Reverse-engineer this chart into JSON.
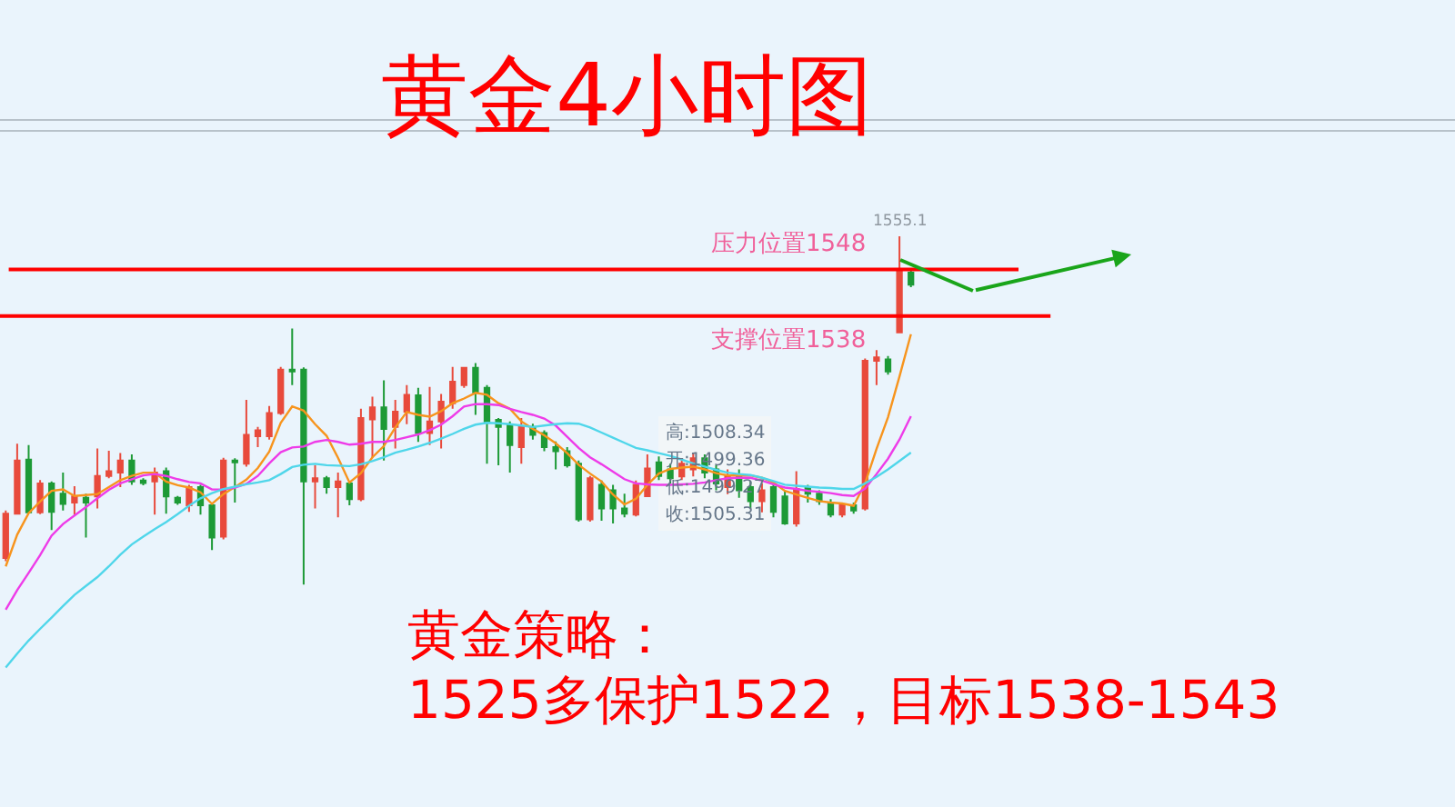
{
  "chart_data": {
    "type": "candlestick",
    "title": "黄金4小时图",
    "annotations": [
      {
        "text": "1555.1",
        "y": 1555.1
      },
      "高:1508.34",
      "开:1499.36",
      "低:1499.27",
      "收:1505.31",
      "黄金策略：",
      "1525多保护1522，目标1538-1543"
    ],
    "categories": [
      null,
      null,
      null,
      null,
      null,
      null,
      null,
      null,
      null,
      null,
      null,
      null,
      null,
      null,
      null,
      null,
      null,
      null,
      null,
      null,
      null,
      null,
      null,
      null,
      null,
      null,
      null,
      null,
      null,
      null,
      null,
      null,
      null,
      null,
      null,
      null,
      null,
      null,
      null,
      null,
      null,
      null,
      null,
      null,
      null,
      null,
      null,
      null,
      null,
      null,
      null,
      null,
      null,
      null,
      null,
      null,
      null,
      null,
      null,
      null,
      null,
      null,
      null,
      null,
      null,
      null,
      null,
      null,
      null,
      null,
      null,
      null,
      null,
      null,
      null,
      null,
      null,
      null,
      null,
      null
    ],
    "ohlc": [
      [
        1486.1,
        1496.3,
        1485.4,
        1495.6
      ],
      [
        1495.6,
        1510.6,
        1495.5,
        1507.0
      ],
      [
        1507.2,
        1510.3,
        1495.7,
        1495.9
      ],
      [
        1495.9,
        1502.8,
        1495.5,
        1502.1
      ],
      [
        1502.1,
        1502.5,
        1492.1,
        1496.0
      ],
      [
        1499.9,
        1504.4,
        1496.3,
        1497.7
      ],
      [
        1498.0,
        1501.5,
        1495.4,
        1499.3
      ],
      [
        1499.0,
        1499.9,
        1490.5,
        1498.0
      ],
      [
        1499.3,
        1509.6,
        1496.7,
        1503.7
      ],
      [
        1503.7,
        1509.1,
        1503.2,
        1504.7
      ],
      [
        1504.4,
        1508.6,
        1501.3,
        1507.0
      ],
      [
        1507.0,
        1508.3,
        1501.8,
        1502.5
      ],
      [
        1502.7,
        1503.2,
        1501.7,
        1502.2
      ],
      [
        1502.5,
        1505.5,
        1495.4,
        1504.4
      ],
      [
        1504.7,
        1505.5,
        1495.6,
        1499.3
      ],
      [
        1499.0,
        1499.4,
        1497.5,
        1498.0
      ],
      [
        1497.4,
        1501.8,
        1496.0,
        1501.3
      ],
      [
        1501.3,
        1501.8,
        1495.4,
        1497.4
      ],
      [
        1497.4,
        1498.0,
        1487.8,
        1490.5
      ],
      [
        1490.7,
        1507.6,
        1490.1,
        1507.0
      ],
      [
        1507.0,
        1507.5,
        1498.0,
        1506.6
      ],
      [
        1506.3,
        1520.0,
        1505.7,
        1512.5
      ],
      [
        1512.2,
        1514.2,
        1509.9,
        1513.5
      ],
      [
        1512.2,
        1518.7,
        1511.5,
        1517.2
      ],
      [
        1517.2,
        1527.1,
        1516.8,
        1526.5
      ],
      [
        1526.5,
        1535.3,
        1523.2,
        1526.1
      ],
      [
        1526.5,
        1527.0,
        1480.4,
        1502.5
      ],
      [
        1502.5,
        1506.0,
        1496.7,
        1503.2
      ],
      [
        1503.2,
        1503.7,
        1499.9,
        1501.3
      ],
      [
        1501.3,
        1504.4,
        1494.8,
        1502.5
      ],
      [
        1502.1,
        1502.5,
        1497.4,
        1498.7
      ],
      [
        1498.7,
        1518.1,
        1498.3,
        1516.1
      ],
      [
        1515.8,
        1520.7,
        1507.6,
        1518.4
      ],
      [
        1518.4,
        1524.2,
        1507.0,
        1513.8
      ],
      [
        1514.2,
        1520.0,
        1509.6,
        1517.5
      ],
      [
        1517.5,
        1523.2,
        1514.8,
        1521.1
      ],
      [
        1521.0,
        1522.6,
        1511.0,
        1512.9
      ],
      [
        1512.9,
        1522.8,
        1510.3,
        1515.4
      ],
      [
        1515.4,
        1521.3,
        1509.6,
        1519.6
      ],
      [
        1519.3,
        1527.1,
        1518.1,
        1523.9
      ],
      [
        1523.2,
        1527.1,
        1522.6,
        1526.9
      ],
      [
        1526.9,
        1527.9,
        1516.8,
        1521.6
      ],
      [
        1522.6,
        1523.2,
        1506.3,
        1515.4
      ],
      [
        1515.7,
        1516.1,
        1506.0,
        1514.2
      ],
      [
        1514.6,
        1515.4,
        1504.4,
        1510.3
      ],
      [
        1509.9,
        1516.1,
        1506.3,
        1514.2
      ],
      [
        1514.2,
        1514.9,
        1511.5,
        1512.5
      ],
      [
        1512.9,
        1513.5,
        1509.0,
        1509.9
      ],
      [
        1509.9,
        1511.1,
        1505.1,
        1509.0
      ],
      [
        1509.0,
        1509.9,
        1505.5,
        1506.0
      ],
      [
        1506.3,
        1507.0,
        1493.9,
        1494.4
      ],
      [
        1494.4,
        1503.7,
        1493.9,
        1503.2
      ],
      [
        1501.8,
        1502.7,
        1494.1,
        1496.7
      ],
      [
        1500.6,
        1501.8,
        1493.5,
        1496.7
      ],
      [
        1496.7,
        1499.9,
        1494.8,
        1495.6
      ],
      [
        1495.4,
        1502.7,
        1495.0,
        1501.8
      ],
      [
        1499.36,
        1508.34,
        1499.27,
        1505.31
      ],
      [
        1506.6,
        1507.9,
        1502.8,
        1503.7
      ],
      [
        1505.1,
        1506.3,
        1502.1,
        1503.2
      ],
      [
        1503.6,
        1507.2,
        1502.8,
        1506.3
      ],
      [
        1505.1,
        1508.7,
        1503.6,
        1507.5
      ],
      [
        1507.5,
        1508.3,
        1503.2,
        1504.4
      ],
      [
        1505.1,
        1506.0,
        1500.6,
        1502.1
      ],
      [
        1501.3,
        1505.1,
        1499.8,
        1503.6
      ],
      [
        1503.6,
        1505.1,
        1499.0,
        1500.6
      ],
      [
        1501.3,
        1502.5,
        1496.7,
        1498.3
      ],
      [
        1498.3,
        1502.1,
        1495.9,
        1500.6
      ],
      [
        1501.3,
        1502.5,
        1494.8,
        1496.0
      ],
      [
        1499.3,
        1500.6,
        1493.2,
        1493.5
      ],
      [
        1493.5,
        1504.7,
        1492.8,
        1500.9
      ],
      [
        1501.3,
        1501.8,
        1498.0,
        1499.9
      ],
      [
        1499.9,
        1500.6,
        1497.5,
        1498.3
      ],
      [
        1498.0,
        1498.7,
        1494.8,
        1495.4
      ],
      [
        1495.4,
        1498.0,
        1494.8,
        1497.4
      ],
      [
        1497.4,
        1498.0,
        1495.6,
        1496.3
      ],
      [
        1496.7,
        1528.9,
        1496.3,
        1528.4
      ],
      [
        1528.4,
        1530.7,
        1523.2,
        1529.1
      ],
      [
        1528.7,
        1529.4,
        1525.4,
        1526.1
      ],
      [
        1534.5,
        1555.1,
        1534.5,
        1547.6
      ],
      [
        1547.3,
        1548.1,
        1544.2,
        1544.7
      ]
    ],
    "colors": [
      "#e84a3c",
      "#e84a3c",
      "#1d9a36",
      "#e84a3c",
      "#1d9a36",
      "#1d9a36",
      "#e84a3c",
      "#1d9a36",
      "#e84a3c",
      "#e84a3c",
      "#e84a3c",
      "#1d9a36",
      "#1d9a36",
      "#e84a3c",
      "#1d9a36",
      "#1d9a36",
      "#e84a3c",
      "#1d9a36",
      "#1d9a36",
      "#e84a3c",
      "#1d9a36",
      "#e84a3c",
      "#e84a3c",
      "#e84a3c",
      "#e84a3c",
      "#1d9a36",
      "#1d9a36",
      "#e84a3c",
      "#1d9a36",
      "#e84a3c",
      "#1d9a36",
      "#e84a3c",
      "#e84a3c",
      "#1d9a36",
      "#e84a3c",
      "#e84a3c",
      "#1d9a36",
      "#e84a3c",
      "#e84a3c",
      "#e84a3c",
      "#e84a3c",
      "#1d9a36",
      "#1d9a36",
      "#1d9a36",
      "#1d9a36",
      "#e84a3c",
      "#1d9a36",
      "#1d9a36",
      "#1d9a36",
      "#1d9a36",
      "#1d9a36",
      "#e84a3c",
      "#1d9a36",
      "#1d9a36",
      "#1d9a36",
      "#e84a3c",
      "#e84a3c",
      "#1d9a36",
      "#1d9a36",
      "#e84a3c",
      "#e84a3c",
      "#1d9a36",
      "#1d9a36",
      "#e84a3c",
      "#1d9a36",
      "#1d9a36",
      "#e84a3c",
      "#1d9a36",
      "#1d9a36",
      "#e84a3c",
      "#1d9a36",
      "#1d9a36",
      "#1d9a36",
      "#e84a3c",
      "#1d9a36",
      "#e84a3c",
      "#e84a3c",
      "#1d9a36",
      "#e84a3c",
      "#1d9a36"
    ],
    "series": [
      {
        "type": "line",
        "color": "#f7941d",
        "values": [
          1484.3,
          1491.1,
          1495.7,
          1498.2,
          1500.5,
          1500.8,
          1499.4,
          1499.6,
          1499.8,
          1501.3,
          1502.8,
          1503.7,
          1504.4,
          1504.4,
          1502.5,
          1501.7,
          1501.2,
          1500.2,
          1497.7,
          1499.8,
          1501.3,
          1502.9,
          1505.4,
          1508.9,
          1515.1,
          1518.6,
          1517.7,
          1514.8,
          1512.3,
          1507.6,
          1502.3,
          1504.3,
          1507.7,
          1510.1,
          1514.1,
          1517.4,
          1516.8,
          1516.4,
          1517.6,
          1519.3,
          1520.3,
          1521.5,
          1521.1,
          1519.3,
          1518.1,
          1515.4,
          1513.8,
          1512.4,
          1510.7,
          1508.6,
          1506.1,
          1504.2,
          1502.5,
          1499.7,
          1497.6,
          1498.8,
          1501.8,
          1504.2,
          1505.2,
          1505.5,
          1505.7,
          1505.1,
          1504.3,
          1503.8,
          1503.8,
          1503.8,
          1503.3,
          1502.3,
          1500.5,
          1499.7,
          1499.0,
          1498.3,
          1498.0,
          1497.8,
          1497.3,
          1502.1,
          1509.5,
          1516.3,
          1525.0,
          1534.1
        ]
      },
      {
        "type": "line",
        "color": "#ee3be8",
        "values": [
          1475.0,
          1479.2,
          1482.9,
          1486.7,
          1490.9,
          1493.4,
          1495.2,
          1497.0,
          1498.9,
          1500.7,
          1502.1,
          1503.0,
          1503.8,
          1504.1,
          1503.7,
          1503.0,
          1502.4,
          1502.1,
          1500.8,
          1500.8,
          1501.2,
          1502.0,
          1503.7,
          1506.4,
          1508.8,
          1509.8,
          1510.0,
          1511.0,
          1511.4,
          1511.0,
          1510.4,
          1510.6,
          1511.0,
          1511.0,
          1511.4,
          1512.0,
          1512.6,
          1513.5,
          1514.7,
          1516.5,
          1518.6,
          1519.1,
          1519.1,
          1518.9,
          1518.1,
          1517.4,
          1516.8,
          1516.0,
          1514.5,
          1512.1,
          1509.7,
          1507.7,
          1506.2,
          1504.6,
          1503.0,
          1502.1,
          1501.9,
          1501.8,
          1501.8,
          1501.9,
          1502.0,
          1502.3,
          1502.8,
          1503.2,
          1503.3,
          1503.3,
          1502.7,
          1501.9,
          1501.2,
          1500.9,
          1500.5,
          1500.3,
          1500.0,
          1499.6,
          1499.4,
          1501.0,
          1504.1,
          1507.4,
          1511.5,
          1516.5
        ]
      },
      {
        "type": "line",
        "color": "#4fd6ea",
        "values": [
          1462.6,
          1465.6,
          1468.4,
          1470.9,
          1473.3,
          1475.8,
          1478.2,
          1480.1,
          1482.0,
          1484.3,
          1486.8,
          1489.0,
          1490.7,
          1492.3,
          1493.8,
          1495.5,
          1497.3,
          1498.9,
          1500.0,
          1500.9,
          1501.4,
          1501.9,
          1502.3,
          1502.8,
          1504.1,
          1505.6,
          1506.1,
          1506.3,
          1506.0,
          1505.9,
          1505.8,
          1506.2,
          1506.9,
          1507.7,
          1508.7,
          1509.3,
          1510.0,
          1510.8,
          1511.7,
          1512.7,
          1513.8,
          1514.7,
          1515.1,
          1515.0,
          1514.8,
          1514.5,
          1514.2,
          1514.5,
          1514.8,
          1515.0,
          1514.9,
          1514.1,
          1513.0,
          1511.9,
          1510.8,
          1509.7,
          1509.2,
          1508.6,
          1508.0,
          1507.2,
          1506.4,
          1505.7,
          1505.0,
          1504.4,
          1504.1,
          1503.9,
          1503.3,
          1502.6,
          1501.8,
          1501.6,
          1501.4,
          1501.2,
          1501.1,
          1500.9,
          1500.9,
          1502.1,
          1503.5,
          1505.1,
          1506.9,
          1508.7
        ]
      }
    ],
    "ylim": [
      1432.7,
      1577.7
    ],
    "ref_lines": [
      {
        "axis": "y",
        "value": 1548,
        "label": "压力位置1548",
        "color": "#ff0000"
      },
      {
        "axis": "y",
        "value": 1538,
        "label": "支撑位置1538",
        "color": "#ff0000"
      }
    ],
    "tick_labels": false
  }
}
